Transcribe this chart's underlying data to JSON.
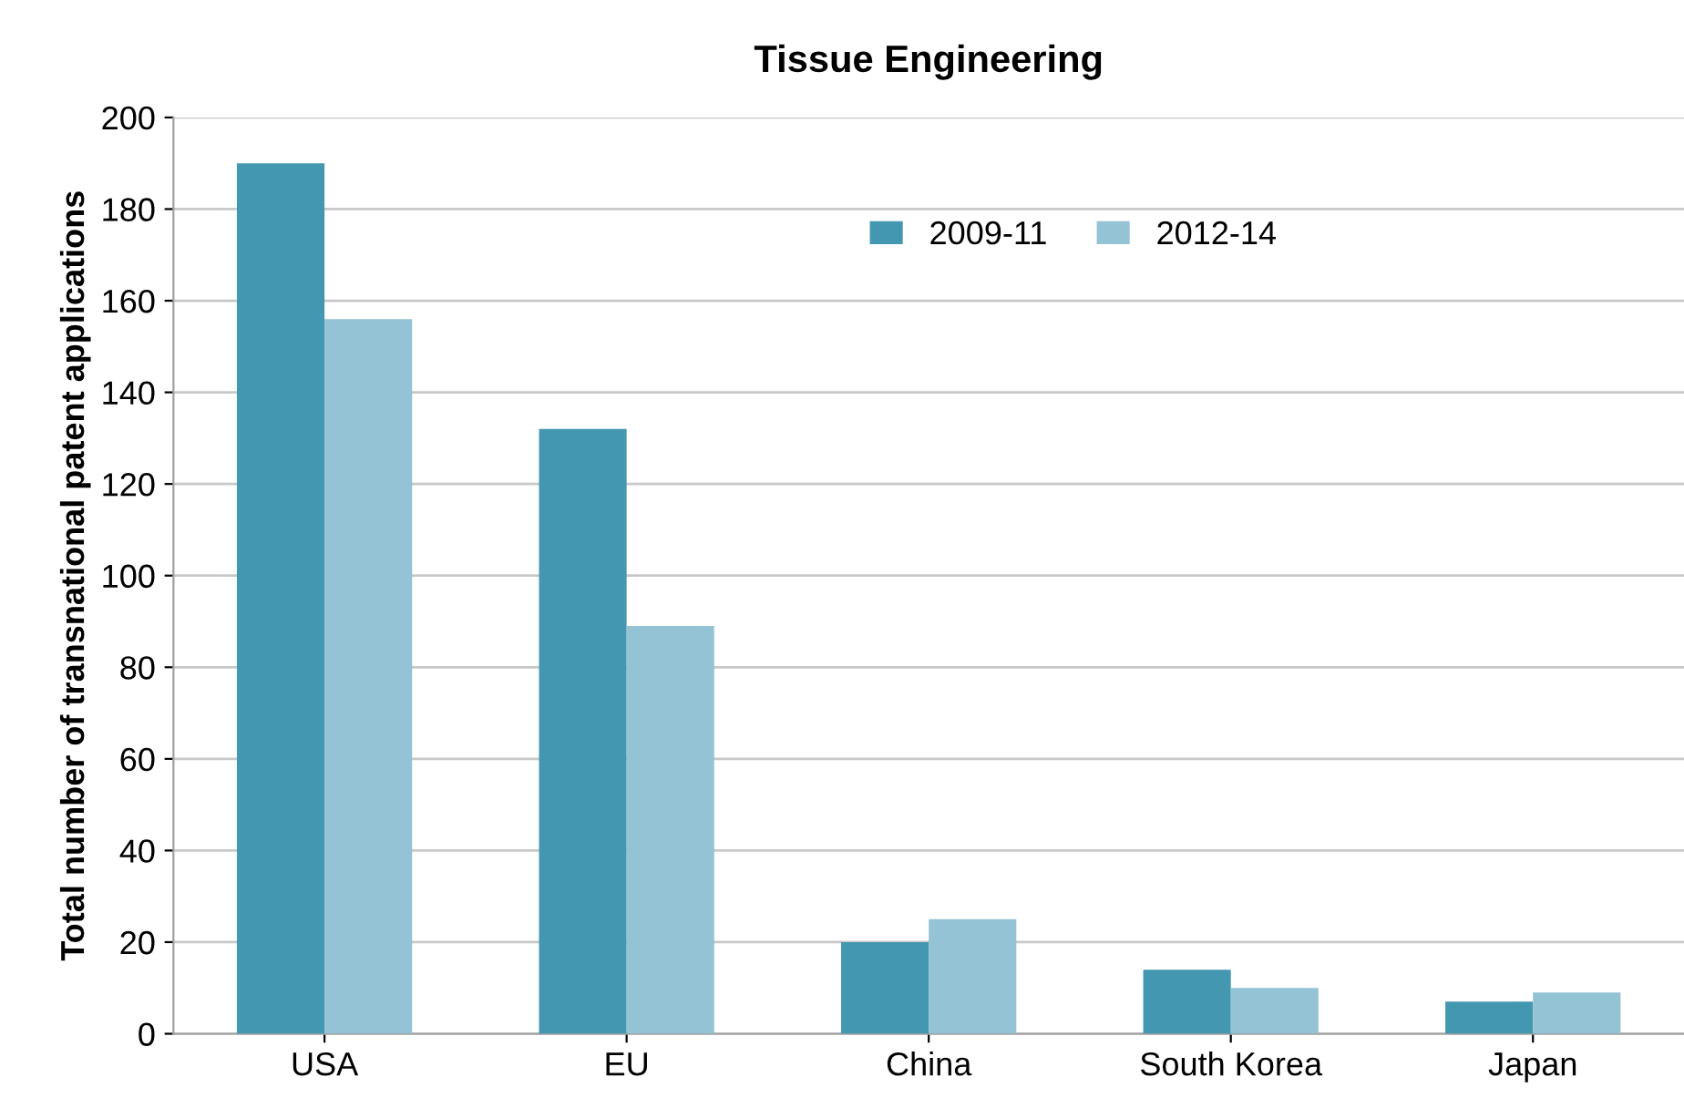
{
  "chart_data": {
    "type": "bar",
    "title": "Tissue Engineering",
    "ylabel": "Total number of transnational patent applications",
    "categories": [
      "USA",
      "EU",
      "China",
      "South Korea",
      "Japan"
    ],
    "series": [
      {
        "name": "2009-11",
        "color": "#4397b0",
        "values": [
          190,
          132,
          20,
          14,
          7
        ]
      },
      {
        "name": "2012-14",
        "color": "#93c3d5",
        "values": [
          156,
          89,
          25,
          10,
          9
        ]
      }
    ],
    "ylim": [
      0,
      200
    ],
    "yticks": [
      0,
      20,
      40,
      60,
      80,
      100,
      120,
      140,
      160,
      180,
      200
    ],
    "grid": "y",
    "legend": "top right"
  }
}
